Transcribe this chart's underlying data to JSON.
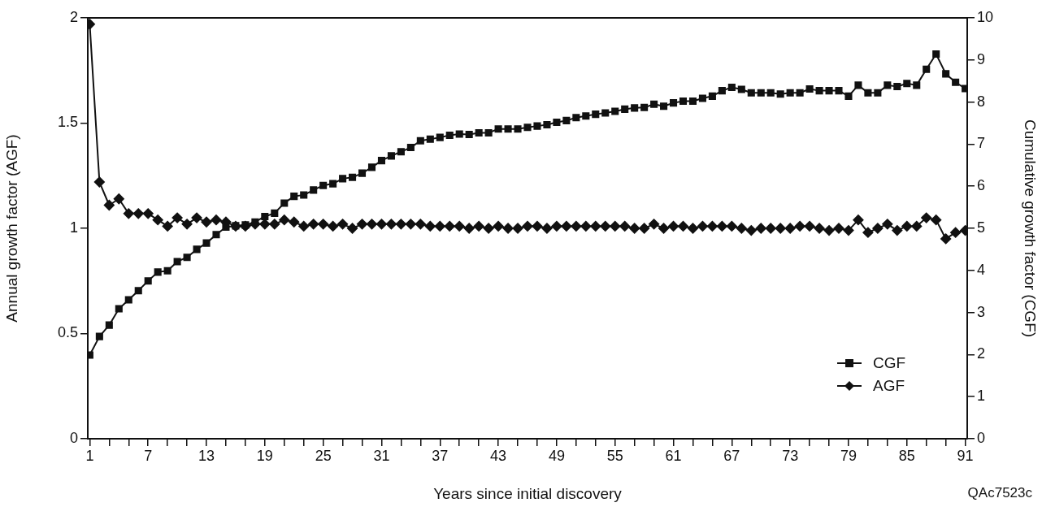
{
  "chart_data": {
    "type": "line",
    "xlabel": "Years since initial discovery",
    "ylabel": "Annual growth factor (AGF)",
    "y2label": "Cumulative growth factor (CGF)",
    "x": [
      1,
      2,
      3,
      4,
      5,
      6,
      7,
      8,
      9,
      10,
      11,
      12,
      13,
      14,
      15,
      16,
      17,
      18,
      19,
      20,
      21,
      22,
      23,
      24,
      25,
      26,
      27,
      28,
      29,
      30,
      31,
      32,
      33,
      34,
      35,
      36,
      37,
      38,
      39,
      40,
      41,
      42,
      43,
      44,
      45,
      46,
      47,
      48,
      49,
      50,
      51,
      52,
      53,
      54,
      55,
      56,
      57,
      58,
      59,
      60,
      61,
      62,
      63,
      64,
      65,
      66,
      67,
      68,
      69,
      70,
      71,
      72,
      73,
      74,
      75,
      76,
      77,
      78,
      79,
      80,
      81,
      82,
      83,
      84,
      85,
      86,
      87,
      88,
      89,
      90,
      91
    ],
    "xlim": [
      0.8,
      91.2
    ],
    "xticks": [
      1,
      {
        "value": 3,
        "label": null
      },
      {
        "value": 5,
        "label": null
      },
      7,
      {
        "value": 9,
        "label": null
      },
      {
        "value": 11,
        "label": null
      },
      13,
      {
        "value": 15,
        "label": null
      },
      {
        "value": 17,
        "label": null
      },
      19,
      {
        "value": 21,
        "label": null
      },
      {
        "value": 23,
        "label": null
      },
      25,
      {
        "value": 27,
        "label": null
      },
      {
        "value": 29,
        "label": null
      },
      31,
      {
        "value": 33,
        "label": null
      },
      {
        "value": 35,
        "label": null
      },
      37,
      {
        "value": 39,
        "label": null
      },
      {
        "value": 41,
        "label": null
      },
      43,
      {
        "value": 45,
        "label": null
      },
      {
        "value": 47,
        "label": null
      },
      49,
      {
        "value": 51,
        "label": null
      },
      {
        "value": 53,
        "label": null
      },
      55,
      {
        "value": 57,
        "label": null
      },
      {
        "value": 59,
        "label": null
      },
      61,
      {
        "value": 63,
        "label": null
      },
      {
        "value": 65,
        "label": null
      },
      67,
      {
        "value": 69,
        "label": null
      },
      {
        "value": 71,
        "label": null
      },
      73,
      {
        "value": 75,
        "label": null
      },
      {
        "value": 77,
        "label": null
      },
      79,
      {
        "value": 81,
        "label": null
      },
      {
        "value": 83,
        "label": null
      },
      85,
      {
        "value": 87,
        "label": null
      },
      {
        "value": 89,
        "label": null
      },
      91
    ],
    "ylim": [
      0,
      2
    ],
    "yticks": [
      0,
      0.5,
      1,
      1.5,
      2
    ],
    "y2lim": [
      0,
      10
    ],
    "y2ticks": [
      0,
      1,
      2,
      3,
      4,
      5,
      6,
      7,
      8,
      9,
      10
    ],
    "series": [
      {
        "name": "CGF",
        "color": "#111111",
        "axis": "y2",
        "marker": "square",
        "values": [
          1.99,
          2.43,
          2.7,
          3.09,
          3.3,
          3.52,
          3.75,
          3.96,
          3.99,
          4.21,
          4.31,
          4.5,
          4.65,
          4.85,
          5.03,
          5.06,
          5.08,
          5.15,
          5.28,
          5.36,
          5.6,
          5.76,
          5.79,
          5.91,
          6.02,
          6.06,
          6.18,
          6.21,
          6.31,
          6.45,
          6.61,
          6.72,
          6.82,
          6.92,
          7.08,
          7.12,
          7.16,
          7.21,
          7.24,
          7.23,
          7.27,
          7.27,
          7.36,
          7.36,
          7.36,
          7.4,
          7.43,
          7.46,
          7.52,
          7.56,
          7.63,
          7.67,
          7.71,
          7.74,
          7.78,
          7.83,
          7.86,
          7.87,
          7.95,
          7.9,
          7.98,
          8.02,
          8.02,
          8.09,
          8.14,
          8.27,
          8.35,
          8.3,
          8.22,
          8.22,
          8.22,
          8.19,
          8.22,
          8.22,
          8.31,
          8.27,
          8.27,
          8.27,
          8.14,
          8.4,
          8.22,
          8.22,
          8.4,
          8.37,
          8.44,
          8.4,
          8.78,
          9.14,
          8.67,
          8.47,
          8.32
        ]
      },
      {
        "name": "AGF",
        "color": "#111111",
        "marker": "diamond",
        "values": [
          1.97,
          1.22,
          1.11,
          1.14,
          1.07,
          1.07,
          1.07,
          1.04,
          1.01,
          1.05,
          1.02,
          1.05,
          1.03,
          1.04,
          1.03,
          1.01,
          1.01,
          1.02,
          1.02,
          1.02,
          1.04,
          1.03,
          1.01,
          1.02,
          1.02,
          1.01,
          1.02,
          1.0,
          1.02,
          1.02,
          1.02,
          1.02,
          1.02,
          1.02,
          1.02,
          1.01,
          1.01,
          1.01,
          1.01,
          1.0,
          1.01,
          1.0,
          1.01,
          1.0,
          1.0,
          1.01,
          1.01,
          1.0,
          1.01,
          1.01,
          1.01,
          1.01,
          1.01,
          1.01,
          1.01,
          1.01,
          1.0,
          1.0,
          1.02,
          1.0,
          1.01,
          1.01,
          1.0,
          1.01,
          1.01,
          1.01,
          1.01,
          1.0,
          0.99,
          1.0,
          1.0,
          1.0,
          1.0,
          1.01,
          1.01,
          1.0,
          0.99,
          1.0,
          0.99,
          1.04,
          0.98,
          1.0,
          1.02,
          0.99,
          1.01,
          1.01,
          1.05,
          1.04,
          0.95,
          0.98,
          0.99
        ]
      }
    ],
    "legend": "bottom right",
    "annotations": [
      "QAc7523c"
    ]
  }
}
